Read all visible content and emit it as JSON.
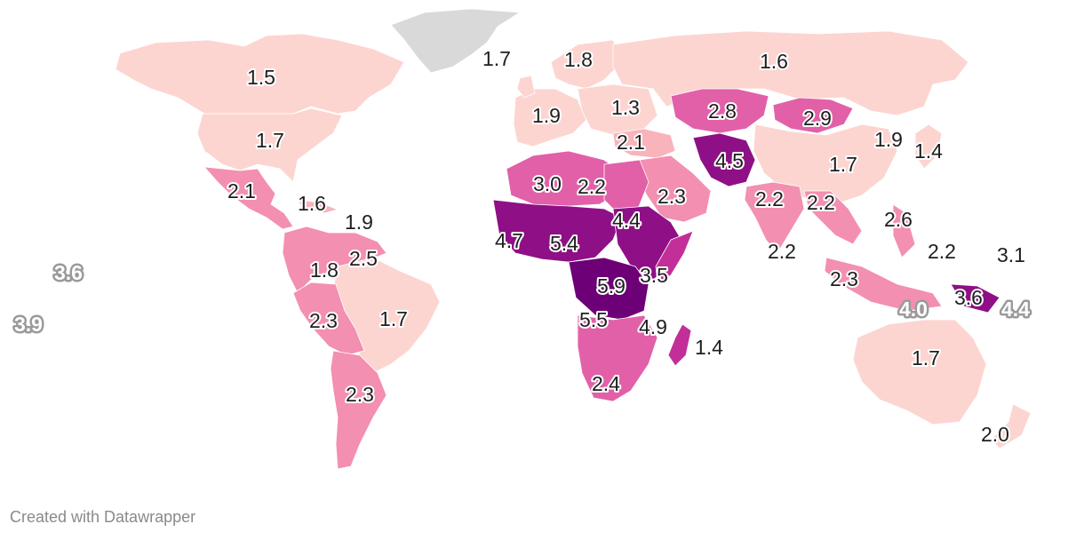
{
  "map": {
    "scale_colors": {
      "r1": "#fcd5d1",
      "r2": "#f8b3bb",
      "r3": "#f38fb0",
      "r4": "#e260a8",
      "r5": "#c22f98",
      "r6": "#8f0f86",
      "r7": "#6d0076",
      "nodata": "#d9d9d9"
    },
    "labels": [
      {
        "region": "Greenland",
        "value": "1.7"
      },
      {
        "region": "Canada",
        "value": "1.5"
      },
      {
        "region": "Scandinavia",
        "value": "1.8"
      },
      {
        "region": "Russia",
        "value": "1.6"
      },
      {
        "region": "Western Europe",
        "value": "1.9"
      },
      {
        "region": "Eastern Europe",
        "value": "1.3"
      },
      {
        "region": "Kazakhstan",
        "value": "2.8"
      },
      {
        "region": "Mongolia",
        "value": "2.9"
      },
      {
        "region": "United States",
        "value": "1.7"
      },
      {
        "region": "Turkey",
        "value": "2.1"
      },
      {
        "region": "Korea",
        "value": "1.9"
      },
      {
        "region": "Japan",
        "value": "1.4"
      },
      {
        "region": "Afghanistan/Pakistan",
        "value": "4.5"
      },
      {
        "region": "China",
        "value": "1.7"
      },
      {
        "region": "Mexico",
        "value": "2.1"
      },
      {
        "region": "Algeria",
        "value": "3.0"
      },
      {
        "region": "Libya",
        "value": "2.2"
      },
      {
        "region": "Caribbean",
        "value": "1.6"
      },
      {
        "region": "Saudi Arabia",
        "value": "2.3"
      },
      {
        "region": "India",
        "value": "2.2"
      },
      {
        "region": "Southeast Asia",
        "value": "2.2"
      },
      {
        "region": "Cuba/Hispaniola",
        "value": "1.9"
      },
      {
        "region": "Sudan",
        "value": "4.4"
      },
      {
        "region": "Philippines",
        "value": "2.6"
      },
      {
        "region": "West Africa",
        "value": "4.7"
      },
      {
        "region": "Niger/Nigeria",
        "value": "5.4"
      },
      {
        "region": "Venezuela/Guianas",
        "value": "2.5"
      },
      {
        "region": "Sri Lanka",
        "value": "2.2"
      },
      {
        "region": "Micronesia",
        "value": "2.2"
      },
      {
        "region": "Marshall Islands",
        "value": "3.1"
      },
      {
        "region": "Colombia/Ecuador",
        "value": "1.8"
      },
      {
        "region": "Kiribati",
        "value": "3.6",
        "style": "muted"
      },
      {
        "region": "East Africa",
        "value": "3.5"
      },
      {
        "region": "Malaysia/Indonesia",
        "value": "2.3"
      },
      {
        "region": "Congo",
        "value": "5.9"
      },
      {
        "region": "Timor-Leste",
        "value": "4.0",
        "style": "muted"
      },
      {
        "region": "Papua New Guinea",
        "value": "3.6"
      },
      {
        "region": "Solomon Islands",
        "value": "4.4",
        "style": "muted"
      },
      {
        "region": "Peru/Bolivia",
        "value": "2.3"
      },
      {
        "region": "Brazil",
        "value": "1.7"
      },
      {
        "region": "Samoa",
        "value": "3.9",
        "style": "muted"
      },
      {
        "region": "Angola",
        "value": "5.5"
      },
      {
        "region": "Mozambique",
        "value": "4.9"
      },
      {
        "region": "Madagascar",
        "value": "1.4"
      },
      {
        "region": "Australia",
        "value": "1.7"
      },
      {
        "region": "Argentina",
        "value": "2.3"
      },
      {
        "region": "South Africa",
        "value": "2.4"
      },
      {
        "region": "New Zealand",
        "value": "2.0"
      }
    ]
  },
  "footer": {
    "credit": "Created with Datawrapper"
  }
}
